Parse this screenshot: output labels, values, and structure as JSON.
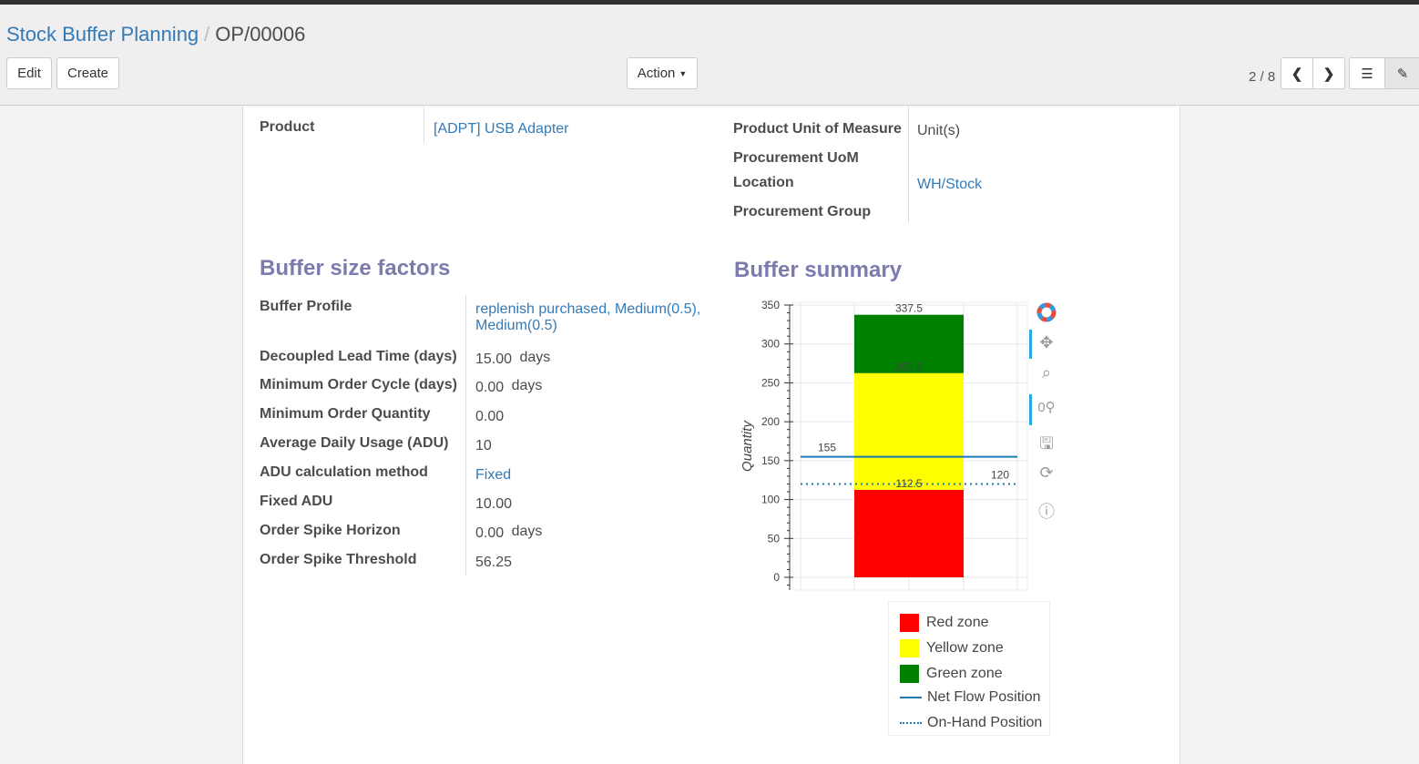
{
  "breadcrumb": {
    "parent": "Stock Buffer Planning",
    "current": "OP/00006"
  },
  "toolbar": {
    "edit": "Edit",
    "create": "Create",
    "action": "Action",
    "pager": "2 / 8"
  },
  "product": {
    "label": "Product",
    "value": "[ADPT] USB Adapter"
  },
  "right_fields": [
    {
      "label": "Product Unit of Measure",
      "value": "Unit(s)"
    },
    {
      "label": "Procurement UoM",
      "value": ""
    },
    {
      "label": "Location",
      "value": "WH/Stock"
    },
    {
      "label": "Procurement Group",
      "value": ""
    }
  ],
  "factors": {
    "title": "Buffer size factors",
    "rows": [
      {
        "label": "Buffer Profile",
        "value": "replenish purchased, Medium(0.5),",
        "value2": "Medium(0.5)",
        "unit": ""
      },
      {
        "label": "Decoupled Lead Time (days)",
        "value": "15.00",
        "unit": "days"
      },
      {
        "label": "Minimum Order Cycle (days)",
        "value": "0.00",
        "unit": "days"
      },
      {
        "label": "Minimum Order Quantity",
        "value": "0.00",
        "unit": ""
      },
      {
        "label": "Average Daily Usage (ADU)",
        "value": "10",
        "unit": ""
      },
      {
        "label": "ADU calculation method",
        "value": "Fixed",
        "unit": ""
      },
      {
        "label": "Fixed ADU",
        "value": "10.00",
        "unit": ""
      },
      {
        "label": "Order Spike Horizon",
        "value": "0.00",
        "unit": "days"
      },
      {
        "label": "Order Spike Threshold",
        "value": "56.25",
        "unit": ""
      }
    ]
  },
  "summary": {
    "title": "Buffer summary"
  },
  "chart_data": {
    "type": "bar",
    "ylabel": "Quantity",
    "ylim": [
      0,
      350
    ],
    "yticks": [
      0,
      50,
      100,
      150,
      200,
      250,
      300,
      350
    ],
    "grid": true,
    "stack": [
      {
        "name": "Red zone",
        "from": 0,
        "to": 112.5,
        "color": "#ff0000"
      },
      {
        "name": "Yellow zone",
        "from": 112.5,
        "to": 262.5,
        "color": "#ffff00"
      },
      {
        "name": "Green zone",
        "from": 262.5,
        "to": 337.5,
        "color": "#008000"
      }
    ],
    "bar_labels": [
      "112.5",
      "262.5",
      "337.5"
    ],
    "lines": [
      {
        "name": "Net Flow Position",
        "value": 155,
        "label": "155",
        "style": "solid",
        "color": "#1f77b4"
      },
      {
        "name": "On-Hand Position",
        "value": 120,
        "label": "120",
        "style": "dotted",
        "color": "#1f77b4"
      }
    ],
    "legend_position": "bottom-right"
  }
}
